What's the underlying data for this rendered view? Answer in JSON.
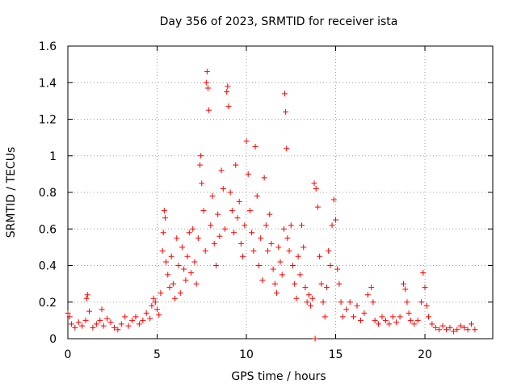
{
  "chart_data": {
    "type": "scatter",
    "title": "Day 356 of 2023, SRMTID for receiver ista",
    "xlabel": "GPS time / hours",
    "ylabel": "SRMTID / TECUs",
    "xlim": [
      0,
      23.8
    ],
    "ylim": [
      0,
      1.6
    ],
    "x_ticks": [
      0,
      5,
      10,
      15,
      20
    ],
    "x_tick_labels": [
      "0",
      "5",
      "10",
      "15",
      "20"
    ],
    "y_ticks": [
      0,
      0.2,
      0.4,
      0.6,
      0.8,
      1,
      1.2,
      1.4,
      1.6
    ],
    "y_tick_labels": [
      "0",
      "0.2",
      "0.4",
      "0.6",
      "0.8",
      "1",
      "1.2",
      "1.4",
      "1.6"
    ],
    "grid": true,
    "marker": "plus",
    "colors": {
      "series": "#ff0000",
      "grid": "#a0a0a0",
      "axes": "#000000"
    },
    "series": [
      {
        "name": "SRMTID",
        "points": [
          [
            0.0,
            0.14
          ],
          [
            0.1,
            0.12
          ],
          [
            0.2,
            0.08
          ],
          [
            0.4,
            0.06
          ],
          [
            0.6,
            0.09
          ],
          [
            0.8,
            0.07
          ],
          [
            1.0,
            0.1
          ],
          [
            1.05,
            0.22
          ],
          [
            1.1,
            0.24
          ],
          [
            1.2,
            0.15
          ],
          [
            1.4,
            0.06
          ],
          [
            1.6,
            0.08
          ],
          [
            1.8,
            0.1
          ],
          [
            2.0,
            0.07
          ],
          [
            1.9,
            0.16
          ],
          [
            2.2,
            0.11
          ],
          [
            2.4,
            0.09
          ],
          [
            2.6,
            0.06
          ],
          [
            2.8,
            0.05
          ],
          [
            3.0,
            0.08
          ],
          [
            3.2,
            0.12
          ],
          [
            3.4,
            0.07
          ],
          [
            3.6,
            0.1
          ],
          [
            3.8,
            0.12
          ],
          [
            4.0,
            0.08
          ],
          [
            4.2,
            0.1
          ],
          [
            4.4,
            0.14
          ],
          [
            4.6,
            0.11
          ],
          [
            4.7,
            0.18
          ],
          [
            4.8,
            0.22
          ],
          [
            4.9,
            0.2
          ],
          [
            5.0,
            0.16
          ],
          [
            5.1,
            0.13
          ],
          [
            5.2,
            0.25
          ],
          [
            5.3,
            0.48
          ],
          [
            5.35,
            0.58
          ],
          [
            5.4,
            0.7
          ],
          [
            5.45,
            0.66
          ],
          [
            5.5,
            0.42
          ],
          [
            5.6,
            0.35
          ],
          [
            5.7,
            0.28
          ],
          [
            5.8,
            0.45
          ],
          [
            5.9,
            0.3
          ],
          [
            6.0,
            0.22
          ],
          [
            6.1,
            0.55
          ],
          [
            6.2,
            0.4
          ],
          [
            6.3,
            0.25
          ],
          [
            6.4,
            0.5
          ],
          [
            6.5,
            0.38
          ],
          [
            6.6,
            0.32
          ],
          [
            6.7,
            0.45
          ],
          [
            6.8,
            0.58
          ],
          [
            6.9,
            0.36
          ],
          [
            7.0,
            0.6
          ],
          [
            7.1,
            0.42
          ],
          [
            7.2,
            0.3
          ],
          [
            7.3,
            0.55
          ],
          [
            7.4,
            0.95
          ],
          [
            7.45,
            1.0
          ],
          [
            7.5,
            0.85
          ],
          [
            7.6,
            0.7
          ],
          [
            7.7,
            0.48
          ],
          [
            7.75,
            1.4
          ],
          [
            7.8,
            1.46
          ],
          [
            7.85,
            1.37
          ],
          [
            7.9,
            1.25
          ],
          [
            8.0,
            0.62
          ],
          [
            8.1,
            0.78
          ],
          [
            8.2,
            0.52
          ],
          [
            8.3,
            0.4
          ],
          [
            8.4,
            0.68
          ],
          [
            8.5,
            0.56
          ],
          [
            8.6,
            0.92
          ],
          [
            8.7,
            0.82
          ],
          [
            8.8,
            0.6
          ],
          [
            8.9,
            1.35
          ],
          [
            8.95,
            1.38
          ],
          [
            9.0,
            1.27
          ],
          [
            9.1,
            0.8
          ],
          [
            9.2,
            0.7
          ],
          [
            9.3,
            0.58
          ],
          [
            9.4,
            0.95
          ],
          [
            9.5,
            0.66
          ],
          [
            9.6,
            0.75
          ],
          [
            9.7,
            0.52
          ],
          [
            9.8,
            0.45
          ],
          [
            9.9,
            0.62
          ],
          [
            10.0,
            1.08
          ],
          [
            10.1,
            0.9
          ],
          [
            10.2,
            0.7
          ],
          [
            10.3,
            0.58
          ],
          [
            10.4,
            0.48
          ],
          [
            10.5,
            1.05
          ],
          [
            10.6,
            0.78
          ],
          [
            10.7,
            0.4
          ],
          [
            10.8,
            0.55
          ],
          [
            10.9,
            0.32
          ],
          [
            11.0,
            0.88
          ],
          [
            11.1,
            0.62
          ],
          [
            11.2,
            0.48
          ],
          [
            11.3,
            0.68
          ],
          [
            11.4,
            0.52
          ],
          [
            11.5,
            0.38
          ],
          [
            11.6,
            0.3
          ],
          [
            11.7,
            0.25
          ],
          [
            11.8,
            0.5
          ],
          [
            11.9,
            0.42
          ],
          [
            12.0,
            0.35
          ],
          [
            12.1,
            0.6
          ],
          [
            12.15,
            1.34
          ],
          [
            12.2,
            1.24
          ],
          [
            12.25,
            1.04
          ],
          [
            12.3,
            0.55
          ],
          [
            12.4,
            0.48
          ],
          [
            12.5,
            0.62
          ],
          [
            12.6,
            0.4
          ],
          [
            12.7,
            0.3
          ],
          [
            12.8,
            0.22
          ],
          [
            12.9,
            0.45
          ],
          [
            13.0,
            0.35
          ],
          [
            13.1,
            0.62
          ],
          [
            13.2,
            0.5
          ],
          [
            13.3,
            0.28
          ],
          [
            13.4,
            0.2
          ],
          [
            13.5,
            0.24
          ],
          [
            13.6,
            0.18
          ],
          [
            13.7,
            0.22
          ],
          [
            13.8,
            0.85
          ],
          [
            13.9,
            0.82
          ],
          [
            14.0,
            0.72
          ],
          [
            14.1,
            0.45
          ],
          [
            14.2,
            0.3
          ],
          [
            14.3,
            0.2
          ],
          [
            14.4,
            0.12
          ],
          [
            14.5,
            0.28
          ],
          [
            14.6,
            0.48
          ],
          [
            14.7,
            0.4
          ],
          [
            14.8,
            0.62
          ],
          [
            14.9,
            0.76
          ],
          [
            15.0,
            0.65
          ],
          [
            15.1,
            0.38
          ],
          [
            15.2,
            0.3
          ],
          [
            15.3,
            0.2
          ],
          [
            15.4,
            0.12
          ],
          [
            15.6,
            0.16
          ],
          [
            15.8,
            0.2
          ],
          [
            16.0,
            0.12
          ],
          [
            16.2,
            0.18
          ],
          [
            16.4,
            0.1
          ],
          [
            16.6,
            0.14
          ],
          [
            16.8,
            0.24
          ],
          [
            17.0,
            0.28
          ],
          [
            17.1,
            0.2
          ],
          [
            17.2,
            0.1
          ],
          [
            17.4,
            0.08
          ],
          [
            17.6,
            0.12
          ],
          [
            17.8,
            0.1
          ],
          [
            18.0,
            0.08
          ],
          [
            18.2,
            0.12
          ],
          [
            18.4,
            0.09
          ],
          [
            18.6,
            0.12
          ],
          [
            18.8,
            0.3
          ],
          [
            18.9,
            0.27
          ],
          [
            19.0,
            0.2
          ],
          [
            19.1,
            0.14
          ],
          [
            19.2,
            0.1
          ],
          [
            19.4,
            0.08
          ],
          [
            19.6,
            0.1
          ],
          [
            19.8,
            0.2
          ],
          [
            19.9,
            0.36
          ],
          [
            20.0,
            0.28
          ],
          [
            20.1,
            0.18
          ],
          [
            20.2,
            0.12
          ],
          [
            20.4,
            0.08
          ],
          [
            20.6,
            0.06
          ],
          [
            20.8,
            0.05
          ],
          [
            21.0,
            0.07
          ],
          [
            21.2,
            0.05
          ],
          [
            21.4,
            0.06
          ],
          [
            21.6,
            0.04
          ],
          [
            21.8,
            0.05
          ],
          [
            22.0,
            0.07
          ],
          [
            22.2,
            0.06
          ],
          [
            22.4,
            0.05
          ],
          [
            22.6,
            0.08
          ],
          [
            22.8,
            0.05
          ],
          [
            13.85,
            0.0
          ]
        ]
      }
    ]
  }
}
